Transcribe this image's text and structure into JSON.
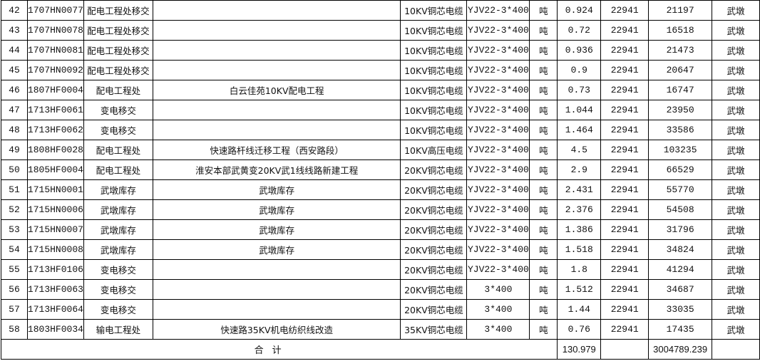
{
  "rows": [
    {
      "no": "42",
      "code": "1707HN0077",
      "dept": "配电工程处移交",
      "project": "",
      "type": "10KV铜芯电缆",
      "spec": "YJV22-3*400",
      "unit": "吨",
      "qty": "0.924",
      "price": "22941",
      "amount": "21197",
      "place": "武墩"
    },
    {
      "no": "43",
      "code": "1707HN0078",
      "dept": "配电工程处移交",
      "project": "",
      "type": "10KV铜芯电缆",
      "spec": "YJV22-3*400",
      "unit": "吨",
      "qty": "0.72",
      "price": "22941",
      "amount": "16518",
      "place": "武墩"
    },
    {
      "no": "44",
      "code": "1707HN0081",
      "dept": "配电工程处移交",
      "project": "",
      "type": "10KV铜芯电缆",
      "spec": "YJV22-3*400",
      "unit": "吨",
      "qty": "0.936",
      "price": "22941",
      "amount": "21473",
      "place": "武墩"
    },
    {
      "no": "45",
      "code": "1707HN0092",
      "dept": "配电工程处移交",
      "project": "",
      "type": "10KV铜芯电缆",
      "spec": "YJV22-3*400",
      "unit": "吨",
      "qty": "0.9",
      "price": "22941",
      "amount": "20647",
      "place": "武墩"
    },
    {
      "no": "46",
      "code": "1807HF0004",
      "dept": "配电工程处",
      "project": "白云佳苑10KV配电工程",
      "type": "10KV铜芯电缆",
      "spec": "YJV22-3*400",
      "unit": "吨",
      "qty": "0.73",
      "price": "22941",
      "amount": "16747",
      "place": "武墩"
    },
    {
      "no": "47",
      "code": "1713HF0061",
      "dept": "变电移交",
      "project": "",
      "type": "10KV铜芯电缆",
      "spec": "YJV22-3*400",
      "unit": "吨",
      "qty": "1.044",
      "price": "22941",
      "amount": "23950",
      "place": "武墩"
    },
    {
      "no": "48",
      "code": "1713HF0062",
      "dept": "变电移交",
      "project": "",
      "type": "10KV铜芯电缆",
      "spec": "YJV22-3*400",
      "unit": "吨",
      "qty": "1.464",
      "price": "22941",
      "amount": "33586",
      "place": "武墩"
    },
    {
      "no": "49",
      "code": "1808HF0028",
      "dept": "配电工程处",
      "project": "快速路杆线迁移工程（西安路段）",
      "type": "10KV高压电缆",
      "spec": "YJV22-3*400",
      "unit": "吨",
      "qty": "4.5",
      "price": "22941",
      "amount": "103235",
      "place": "武墩"
    },
    {
      "no": "50",
      "code": "1805HF0004",
      "dept": "配电工程处",
      "project": "淮安本部武黄变20KV武1线线路新建工程",
      "type": "20KV铜芯电缆",
      "spec": "YJV22-3*400",
      "unit": "吨",
      "qty": "2.9",
      "price": "22941",
      "amount": "66529",
      "place": "武墩"
    },
    {
      "no": "51",
      "code": "1715HN0001",
      "dept": "武墩库存",
      "project": "武墩库存",
      "type": "20KV铜芯电缆",
      "spec": "YJV22-3*400",
      "unit": "吨",
      "qty": "2.431",
      "price": "22941",
      "amount": "55770",
      "place": "武墩"
    },
    {
      "no": "52",
      "code": "1715HN0006",
      "dept": "武墩库存",
      "project": "武墩库存",
      "type": "20KV铜芯电缆",
      "spec": "YJV22-3*400",
      "unit": "吨",
      "qty": "2.376",
      "price": "22941",
      "amount": "54508",
      "place": "武墩"
    },
    {
      "no": "53",
      "code": "1715HN0007",
      "dept": "武墩库存",
      "project": "武墩库存",
      "type": "20KV铜芯电缆",
      "spec": "YJV22-3*400",
      "unit": "吨",
      "qty": "1.386",
      "price": "22941",
      "amount": "31796",
      "place": "武墩"
    },
    {
      "no": "54",
      "code": "1715HN0008",
      "dept": "武墩库存",
      "project": "武墩库存",
      "type": "20KV铜芯电缆",
      "spec": "YJV22-3*400",
      "unit": "吨",
      "qty": "1.518",
      "price": "22941",
      "amount": "34824",
      "place": "武墩"
    },
    {
      "no": "55",
      "code": "1713HF0106",
      "dept": "变电移交",
      "project": "",
      "type": "20KV铜芯电缆",
      "spec": "YJV22-3*400",
      "unit": "吨",
      "qty": "1.8",
      "price": "22941",
      "amount": "41294",
      "place": "武墩"
    },
    {
      "no": "56",
      "code": "1713HF0063",
      "dept": "变电移交",
      "project": "",
      "type": "20KV铜芯电缆",
      "spec": "3*400",
      "unit": "吨",
      "qty": "1.512",
      "price": "22941",
      "amount": "34687",
      "place": "武墩"
    },
    {
      "no": "57",
      "code": "1713HF0064",
      "dept": "变电移交",
      "project": "",
      "type": "20KV铜芯电缆",
      "spec": "3*400",
      "unit": "吨",
      "qty": "1.44",
      "price": "22941",
      "amount": "33035",
      "place": "武墩"
    },
    {
      "no": "58",
      "code": "1803HF0034",
      "dept": "输电工程处",
      "project": "快速路35KV机电纺织线改造",
      "type": "35KV铜芯电缆",
      "spec": "3*400",
      "unit": "吨",
      "qty": "0.76",
      "price": "22941",
      "amount": "17435",
      "place": "武墩"
    }
  ],
  "total": {
    "label": "合计",
    "qty": "130.979",
    "amount": "3004789.239"
  }
}
